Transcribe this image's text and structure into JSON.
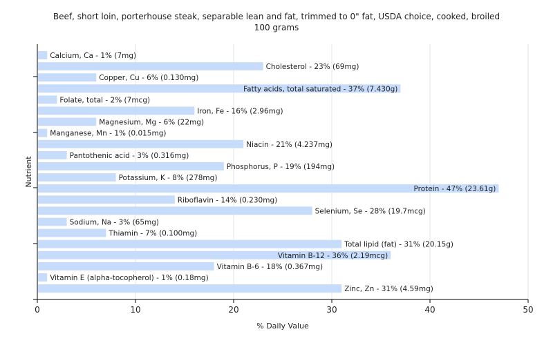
{
  "chart_data": {
    "type": "bar",
    "orientation": "horizontal",
    "title": "Beef, short loin, porterhouse steak, separable lean and fat, trimmed to 0\" fat, USDA choice, cooked, broiled",
    "subtitle": "100 grams",
    "xlabel": "% Daily Value",
    "ylabel": "Nutrient",
    "xlim": [
      0,
      50
    ],
    "xticks": [
      0,
      10,
      20,
      30,
      40,
      50
    ],
    "grid": true,
    "bar_color": "#c6dcfa",
    "categories": [
      "Calcium, Ca",
      "Cholesterol",
      "Copper, Cu",
      "Fatty acids, total saturated",
      "Folate, total",
      "Iron, Fe",
      "Magnesium, Mg",
      "Manganese, Mn",
      "Niacin",
      "Pantothenic acid",
      "Phosphorus, P",
      "Potassium, K",
      "Protein",
      "Riboflavin",
      "Selenium, Se",
      "Sodium, Na",
      "Thiamin",
      "Total lipid (fat)",
      "Vitamin B-12",
      "Vitamin B-6",
      "Vitamin E (alpha-tocopherol)",
      "Zinc, Zn"
    ],
    "values": [
      1,
      23,
      6,
      37,
      2,
      16,
      6,
      1,
      21,
      3,
      19,
      8,
      47,
      14,
      28,
      3,
      7,
      31,
      36,
      18,
      1,
      31
    ],
    "labels": [
      "Calcium, Ca - 1% (7mg)",
      "Cholesterol - 23% (69mg)",
      "Copper, Cu - 6% (0.130mg)",
      "Fatty acids, total saturated - 37% (7.430g)",
      "Folate, total - 2% (7mcg)",
      "Iron, Fe - 16% (2.96mg)",
      "Magnesium, Mg - 6% (22mg)",
      "Manganese, Mn - 1% (0.015mg)",
      "Niacin - 21% (4.237mg)",
      "Pantothenic acid - 3% (0.316mg)",
      "Phosphorus, P - 19% (194mg)",
      "Potassium, K - 8% (278mg)",
      "Protein - 47% (23.61g)",
      "Riboflavin - 14% (0.230mg)",
      "Selenium, Se - 28% (19.7mcg)",
      "Sodium, Na - 3% (65mg)",
      "Thiamin - 7% (0.100mg)",
      "Total lipid (fat) - 31% (20.15g)",
      "Vitamin B-12 - 36% (2.19mcg)",
      "Vitamin B-6 - 18% (0.367mg)",
      "Vitamin E (alpha-tocopherol) - 1% (0.18mg)",
      "Zinc, Zn - 31% (4.59mg)"
    ]
  }
}
